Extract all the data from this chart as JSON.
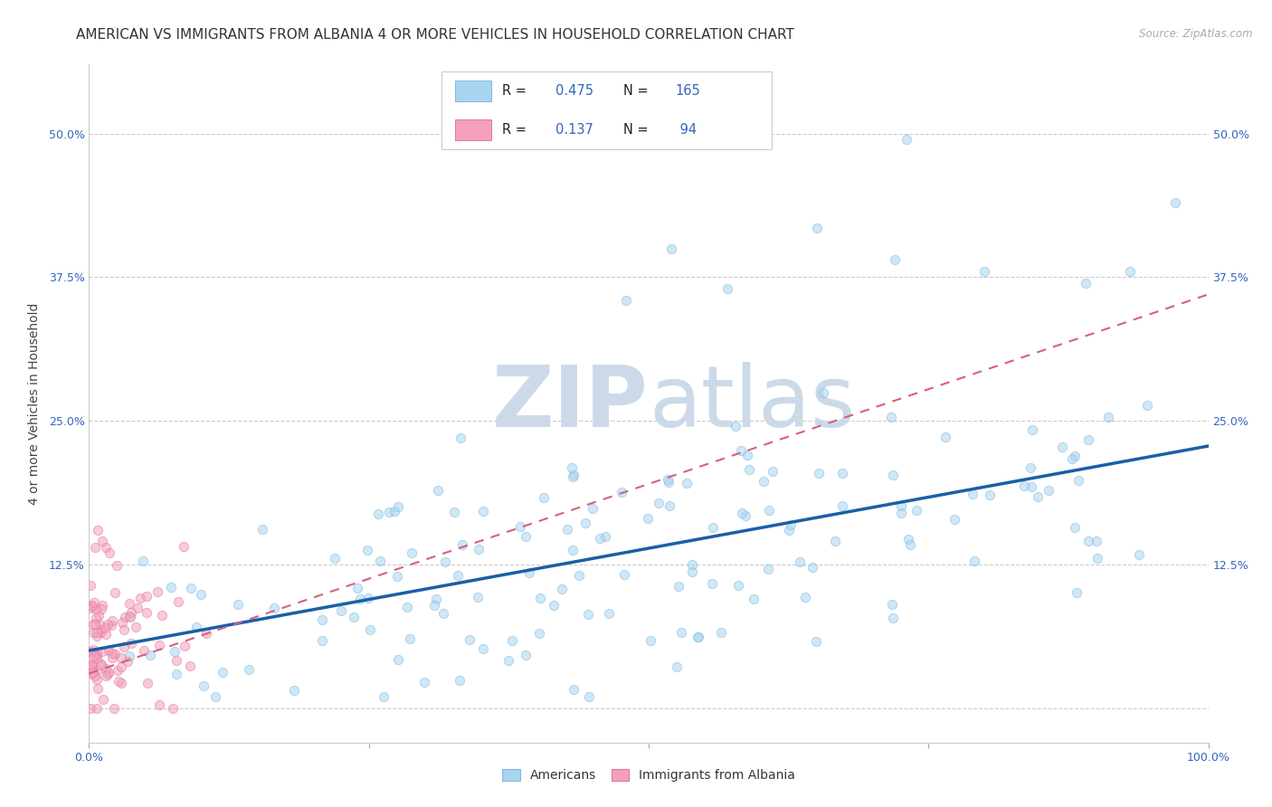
{
  "title": "AMERICAN VS IMMIGRANTS FROM ALBANIA 4 OR MORE VEHICLES IN HOUSEHOLD CORRELATION CHART",
  "source": "Source: ZipAtlas.com",
  "ylabel": "4 or more Vehicles in Household",
  "ytick_labels": [
    "",
    "12.5%",
    "25.0%",
    "37.5%",
    "50.0%"
  ],
  "ytick_values": [
    0.0,
    0.125,
    0.25,
    0.375,
    0.5
  ],
  "xmin": 0.0,
  "xmax": 1.0,
  "ymin": -0.03,
  "ymax": 0.56,
  "blue_line_y_start": 0.05,
  "blue_line_y_end": 0.228,
  "pink_line_y_start": 0.03,
  "pink_line_y_end": 0.36,
  "scatter_size": 55,
  "scatter_alpha": 0.55,
  "blue_color": "#a8d4f0",
  "blue_edge": "#80b8e0",
  "pink_color": "#f4a0bc",
  "pink_edge": "#e07898",
  "blue_line_color": "#1a5fa8",
  "pink_line_color": "#d46080",
  "grid_color": "#cccccc",
  "background_color": "#ffffff",
  "watermark_color": "#ccd9e8",
  "title_fontsize": 11,
  "axis_fontsize": 10,
  "tick_fontsize": 9,
  "legend_R_blue": "0.475",
  "legend_N_blue": "165",
  "legend_R_pink": "0.137",
  "legend_N_pink": " 94"
}
